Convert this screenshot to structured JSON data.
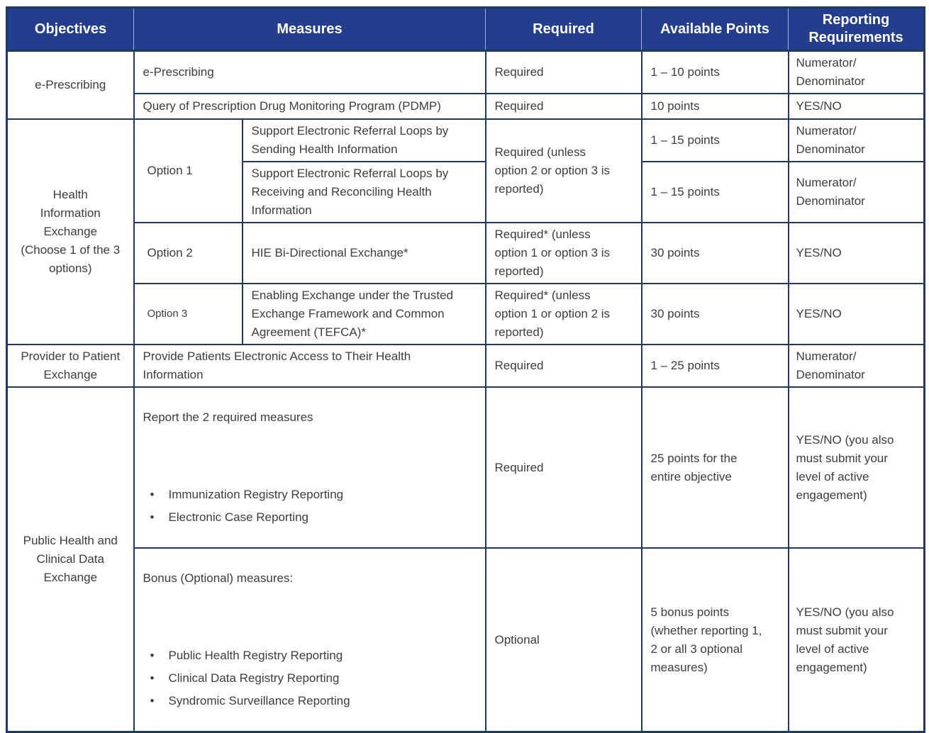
{
  "table": {
    "headers": {
      "objectives": "Objectives",
      "measures": "Measures",
      "required": "Required",
      "points": "Available Points",
      "reporting": "Reporting Requirements"
    }
  },
  "theme": {
    "header_bg": "#243e8e",
    "border_color": "#1f3864",
    "header_text_color": "#ffffff",
    "body_text_color": "#3d3d3d"
  },
  "sections": [
    {
      "objective": "e-Prescribing",
      "rows": [
        {
          "measure": "e-Prescribing",
          "required": "Required",
          "points": "1 – 10 points",
          "reporting": "Numerator/\nDenominator"
        },
        {
          "measure": "Query of Prescription Drug Monitoring Program (PDMP)",
          "required": "Required",
          "points": "10 points",
          "reporting": "YES/NO"
        }
      ]
    },
    {
      "objective": "Health\nInformation\nExchange\n(Choose 1 of the 3\noptions)",
      "options": [
        {
          "label": "Option 1",
          "required": "Required (unless\noption 2 or option 3 is\nreported)",
          "measures": [
            {
              "measure": "Support Electronic Referral Loops by\nSending Health Information",
              "points": "1 – 15 points",
              "reporting": "Numerator/\nDenominator"
            },
            {
              "measure": "Support Electronic Referral Loops by\nReceiving and Reconciling Health\nInformation",
              "points": "1 – 15 points",
              "reporting": "Numerator/\nDenominator"
            }
          ]
        },
        {
          "label": "Option 2",
          "measure": "HIE Bi-Directional Exchange*",
          "required": "Required* (unless\noption 1 or option 3 is\nreported)",
          "points": "30 points",
          "reporting": "YES/NO"
        },
        {
          "label": "Option 3",
          "measure": "Enabling Exchange under the Trusted\nExchange Framework and Common\nAgreement (TEFCA)*",
          "required": "Required* (unless\noption 1 or option 2 is\nreported)",
          "points": "30 points",
          "reporting": "YES/NO"
        }
      ]
    },
    {
      "objective": "Provider to Patient\nExchange",
      "rows": [
        {
          "measure": "Provide Patients Electronic Access to Their Health\nInformation",
          "required": "Required",
          "points": "1 – 25 points",
          "reporting": "Numerator/\nDenominator"
        }
      ]
    },
    {
      "objective": "Public Health and\nClinical Data\nExchange",
      "rows": [
        {
          "measure_intro": "Report the 2 required measures",
          "measure_bullets": [
            "Immunization Registry Reporting",
            "Electronic Case Reporting"
          ],
          "required": "Required",
          "points": "25 points for the\nentire objective",
          "reporting": "YES/NO (you also\nmust submit your\nlevel of active\nengagement)"
        },
        {
          "measure_intro": "Bonus (Optional) measures:",
          "measure_bullets": [
            "Public Health Registry Reporting",
            "Clinical Data Registry Reporting",
            "Syndromic Surveillance Reporting"
          ],
          "required": "Optional",
          "points": "5 bonus points\n(whether reporting 1,\n2 or all 3 optional\nmeasures)",
          "reporting": "YES/NO (you also\nmust submit your\nlevel of active\nengagement)"
        }
      ]
    }
  ]
}
